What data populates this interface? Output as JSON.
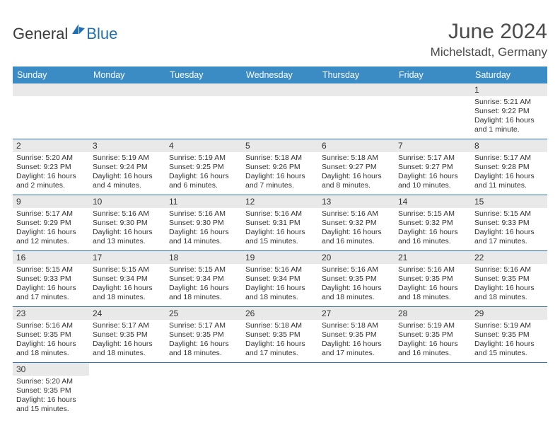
{
  "brand": {
    "text_dark": "General",
    "text_blue": "Blue",
    "icon_color": "#1f6fb2"
  },
  "title": "June 2024",
  "location": "Michelstadt, Germany",
  "colors": {
    "header_bg": "#3b8bc4",
    "header_text": "#ffffff",
    "daynum_bg": "#e9e9e9",
    "row_divider": "#2f6fa8",
    "body_text": "#333333"
  },
  "weekdays": [
    "Sunday",
    "Monday",
    "Tuesday",
    "Wednesday",
    "Thursday",
    "Friday",
    "Saturday"
  ],
  "first_weekday_index": 6,
  "days": [
    {
      "n": 1,
      "sunrise": "5:21 AM",
      "sunset": "9:22 PM",
      "daylight": "16 hours and 1 minute."
    },
    {
      "n": 2,
      "sunrise": "5:20 AM",
      "sunset": "9:23 PM",
      "daylight": "16 hours and 2 minutes."
    },
    {
      "n": 3,
      "sunrise": "5:19 AM",
      "sunset": "9:24 PM",
      "daylight": "16 hours and 4 minutes."
    },
    {
      "n": 4,
      "sunrise": "5:19 AM",
      "sunset": "9:25 PM",
      "daylight": "16 hours and 6 minutes."
    },
    {
      "n": 5,
      "sunrise": "5:18 AM",
      "sunset": "9:26 PM",
      "daylight": "16 hours and 7 minutes."
    },
    {
      "n": 6,
      "sunrise": "5:18 AM",
      "sunset": "9:27 PM",
      "daylight": "16 hours and 8 minutes."
    },
    {
      "n": 7,
      "sunrise": "5:17 AM",
      "sunset": "9:27 PM",
      "daylight": "16 hours and 10 minutes."
    },
    {
      "n": 8,
      "sunrise": "5:17 AM",
      "sunset": "9:28 PM",
      "daylight": "16 hours and 11 minutes."
    },
    {
      "n": 9,
      "sunrise": "5:17 AM",
      "sunset": "9:29 PM",
      "daylight": "16 hours and 12 minutes."
    },
    {
      "n": 10,
      "sunrise": "5:16 AM",
      "sunset": "9:30 PM",
      "daylight": "16 hours and 13 minutes."
    },
    {
      "n": 11,
      "sunrise": "5:16 AM",
      "sunset": "9:30 PM",
      "daylight": "16 hours and 14 minutes."
    },
    {
      "n": 12,
      "sunrise": "5:16 AM",
      "sunset": "9:31 PM",
      "daylight": "16 hours and 15 minutes."
    },
    {
      "n": 13,
      "sunrise": "5:16 AM",
      "sunset": "9:32 PM",
      "daylight": "16 hours and 16 minutes."
    },
    {
      "n": 14,
      "sunrise": "5:15 AM",
      "sunset": "9:32 PM",
      "daylight": "16 hours and 16 minutes."
    },
    {
      "n": 15,
      "sunrise": "5:15 AM",
      "sunset": "9:33 PM",
      "daylight": "16 hours and 17 minutes."
    },
    {
      "n": 16,
      "sunrise": "5:15 AM",
      "sunset": "9:33 PM",
      "daylight": "16 hours and 17 minutes."
    },
    {
      "n": 17,
      "sunrise": "5:15 AM",
      "sunset": "9:34 PM",
      "daylight": "16 hours and 18 minutes."
    },
    {
      "n": 18,
      "sunrise": "5:15 AM",
      "sunset": "9:34 PM",
      "daylight": "16 hours and 18 minutes."
    },
    {
      "n": 19,
      "sunrise": "5:16 AM",
      "sunset": "9:34 PM",
      "daylight": "16 hours and 18 minutes."
    },
    {
      "n": 20,
      "sunrise": "5:16 AM",
      "sunset": "9:35 PM",
      "daylight": "16 hours and 18 minutes."
    },
    {
      "n": 21,
      "sunrise": "5:16 AM",
      "sunset": "9:35 PM",
      "daylight": "16 hours and 18 minutes."
    },
    {
      "n": 22,
      "sunrise": "5:16 AM",
      "sunset": "9:35 PM",
      "daylight": "16 hours and 18 minutes."
    },
    {
      "n": 23,
      "sunrise": "5:16 AM",
      "sunset": "9:35 PM",
      "daylight": "16 hours and 18 minutes."
    },
    {
      "n": 24,
      "sunrise": "5:17 AM",
      "sunset": "9:35 PM",
      "daylight": "16 hours and 18 minutes."
    },
    {
      "n": 25,
      "sunrise": "5:17 AM",
      "sunset": "9:35 PM",
      "daylight": "16 hours and 18 minutes."
    },
    {
      "n": 26,
      "sunrise": "5:18 AM",
      "sunset": "9:35 PM",
      "daylight": "16 hours and 17 minutes."
    },
    {
      "n": 27,
      "sunrise": "5:18 AM",
      "sunset": "9:35 PM",
      "daylight": "16 hours and 17 minutes."
    },
    {
      "n": 28,
      "sunrise": "5:19 AM",
      "sunset": "9:35 PM",
      "daylight": "16 hours and 16 minutes."
    },
    {
      "n": 29,
      "sunrise": "5:19 AM",
      "sunset": "9:35 PM",
      "daylight": "16 hours and 15 minutes."
    },
    {
      "n": 30,
      "sunrise": "5:20 AM",
      "sunset": "9:35 PM",
      "daylight": "16 hours and 15 minutes."
    }
  ],
  "labels": {
    "sunrise": "Sunrise:",
    "sunset": "Sunset:",
    "daylight": "Daylight:"
  }
}
